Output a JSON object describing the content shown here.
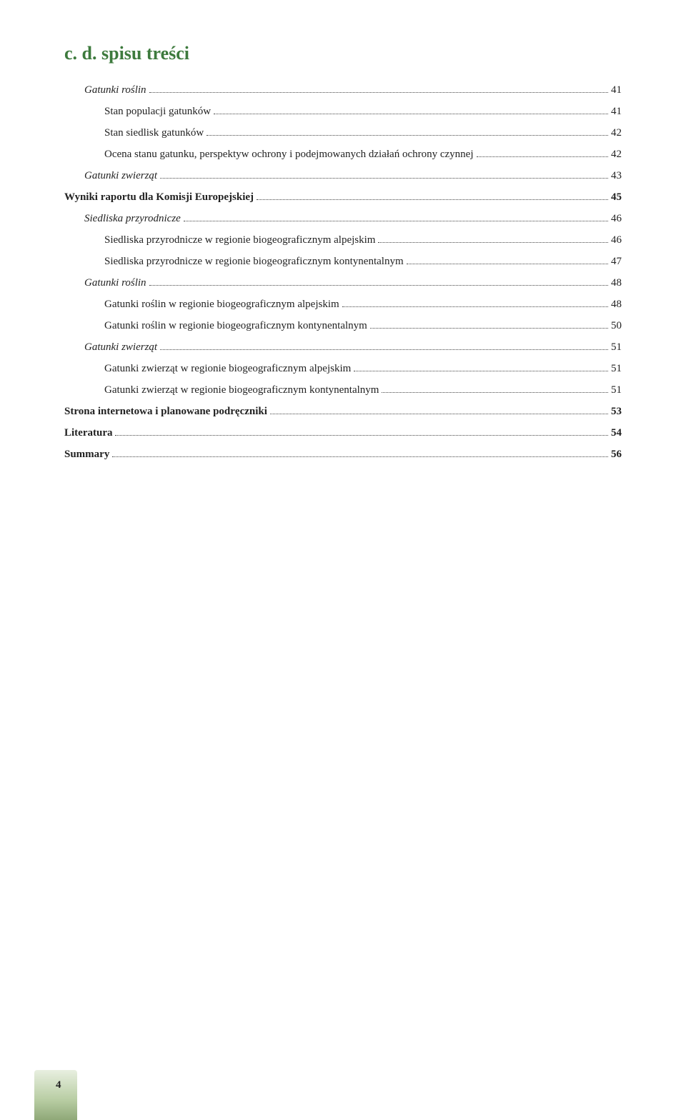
{
  "heading": "c. d. spisu treści",
  "entries": [
    {
      "label": "Gatunki roślin",
      "page": "41",
      "indent": 1,
      "italic": true,
      "bold": false
    },
    {
      "label": "Stan populacji gatunków",
      "page": "41",
      "indent": 2,
      "italic": false,
      "bold": false
    },
    {
      "label": "Stan siedlisk gatunków",
      "page": "42",
      "indent": 2,
      "italic": false,
      "bold": false
    },
    {
      "label": "Ocena stanu gatunku, perspektyw ochrony i podejmowanych działań ochrony czynnej",
      "page": "42",
      "indent": 2,
      "italic": false,
      "bold": false
    },
    {
      "label": "Gatunki zwierząt",
      "page": "43",
      "indent": 1,
      "italic": true,
      "bold": false
    },
    {
      "label": "Wyniki raportu dla Komisji Europejskiej",
      "page": "45",
      "indent": 0,
      "italic": false,
      "bold": true
    },
    {
      "label": "Siedliska przyrodnicze",
      "page": "46",
      "indent": 1,
      "italic": true,
      "bold": false
    },
    {
      "label": "Siedliska przyrodnicze w regionie biogeograficznym alpejskim",
      "page": "46",
      "indent": 2,
      "italic": false,
      "bold": false
    },
    {
      "label": "Siedliska przyrodnicze w regionie biogeograficznym kontynentalnym",
      "page": "47",
      "indent": 2,
      "italic": false,
      "bold": false
    },
    {
      "label": "Gatunki roślin",
      "page": "48",
      "indent": 1,
      "italic": true,
      "bold": false
    },
    {
      "label": "Gatunki roślin w regionie biogeograficznym alpejskim",
      "page": "48",
      "indent": 2,
      "italic": false,
      "bold": false
    },
    {
      "label": "Gatunki roślin w regionie biogeograficznym kontynentalnym",
      "page": "50",
      "indent": 2,
      "italic": false,
      "bold": false
    },
    {
      "label": "Gatunki zwierząt",
      "page": "51",
      "indent": 1,
      "italic": true,
      "bold": false
    },
    {
      "label": "Gatunki zwierząt w regionie biogeograficznym alpejskim",
      "page": "51",
      "indent": 2,
      "italic": false,
      "bold": false
    },
    {
      "label": "Gatunki zwierząt w regionie biogeograficznym kontynentalnym",
      "page": "51",
      "indent": 2,
      "italic": false,
      "bold": false
    },
    {
      "label": "Strona internetowa i planowane podręczniki",
      "page": "53",
      "indent": 0,
      "italic": false,
      "bold": true
    },
    {
      "label": "Literatura",
      "page": "54",
      "indent": 0,
      "italic": false,
      "bold": true
    },
    {
      "label": "Summary",
      "page": "56",
      "indent": 0,
      "italic": false,
      "bold": true
    }
  ],
  "footer_page": "4",
  "colors": {
    "heading": "#3d7a3d",
    "text": "#222222",
    "background": "#ffffff"
  }
}
